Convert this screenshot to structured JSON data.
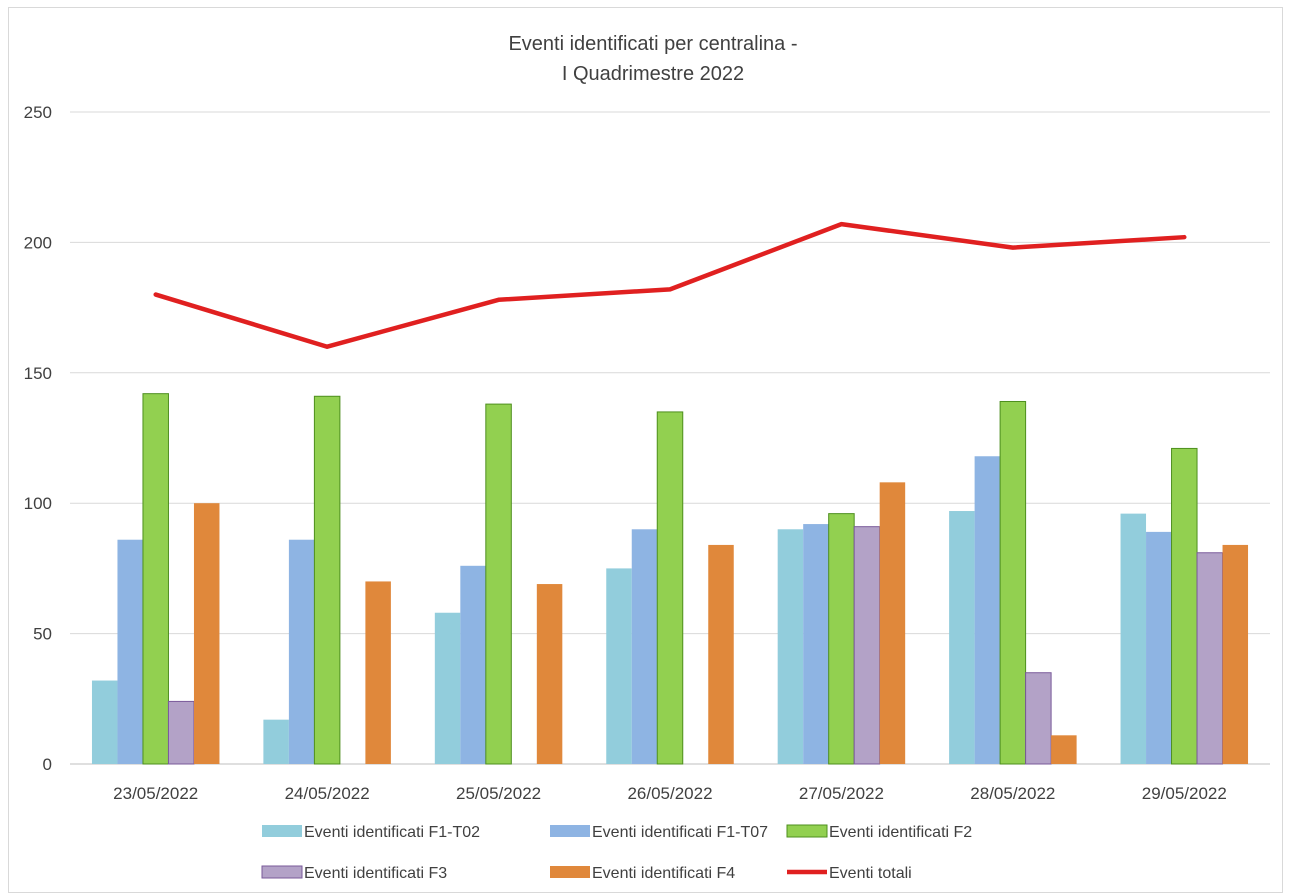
{
  "chart_data": {
    "type": "bar",
    "title_lines": [
      "Eventi identificati per centralina -",
      "I Quadrimestre 2022"
    ],
    "xlabel": "",
    "ylabel": "",
    "ylim": [
      0,
      250
    ],
    "yticks": [
      0,
      50,
      100,
      150,
      200,
      250
    ],
    "grid": true,
    "legend_position": "bottom",
    "categories": [
      "23/05/2022",
      "24/05/2022",
      "25/05/2022",
      "26/05/2022",
      "27/05/2022",
      "28/05/2022",
      "29/05/2022"
    ],
    "series": [
      {
        "name": "Eventi identificati F1-T02",
        "type": "bar",
        "color": "#92cddc",
        "values": [
          32,
          17,
          58,
          75,
          90,
          97,
          96
        ]
      },
      {
        "name": "Eventi identificati F1-T07",
        "type": "bar",
        "color": "#8eb4e3",
        "values": [
          86,
          86,
          76,
          90,
          92,
          118,
          89
        ]
      },
      {
        "name": "Eventi identificati F2",
        "type": "bar",
        "color": "#92d050",
        "stroke": "#4e8f1e",
        "values": [
          142,
          141,
          138,
          135,
          96,
          139,
          121
        ]
      },
      {
        "name": "Eventi identificati F3",
        "type": "bar",
        "color": "#b3a2c7",
        "stroke": "#7a5a9a",
        "values": [
          24,
          0,
          0,
          0,
          91,
          35,
          81
        ]
      },
      {
        "name": "Eventi identificati F4",
        "type": "bar",
        "color": "#e0883b",
        "values": [
          100,
          70,
          69,
          84,
          108,
          11,
          84
        ]
      },
      {
        "name": "Eventi totali",
        "type": "line",
        "color": "#e02020",
        "values": [
          180,
          160,
          178,
          182,
          207,
          198,
          202
        ]
      }
    ]
  }
}
